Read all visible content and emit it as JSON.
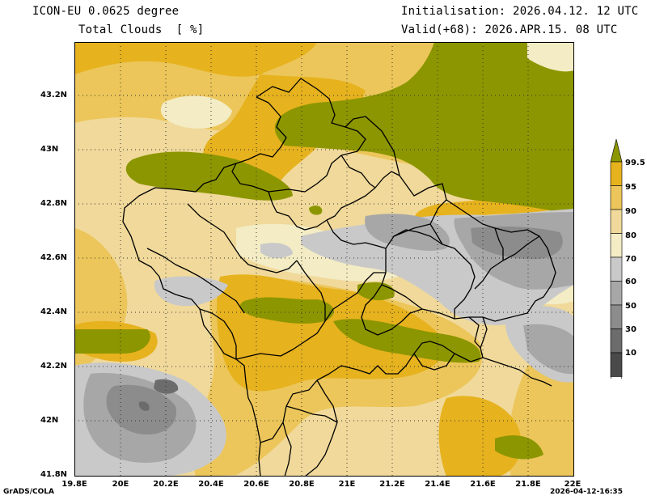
{
  "header": {
    "model": "ICON-EU 0.0625 degree",
    "field": "Total Clouds  [ %]",
    "init": "Initialisation: 2026.04.12. 12 UTC",
    "valid": "Valid(+68): 2026.APR.15. 08 UTC"
  },
  "axes": {
    "lat_labels": [
      "43.2N",
      "43N",
      "42.8N",
      "42.6N",
      "42.4N",
      "42.2N",
      "42N",
      "41.8N"
    ],
    "lon_labels": [
      "19.8E",
      "20E",
      "20.2E",
      "20.4E",
      "20.6E",
      "20.8E",
      "21E",
      "21.2E",
      "21.4E",
      "21.6E",
      "21.8E",
      "22E"
    ],
    "lat_range": [
      41.8,
      43.4
    ],
    "lon_range": [
      19.8,
      22.0
    ],
    "grid": "dotted"
  },
  "colorbar": {
    "labels": [
      "99.5",
      "95",
      "90",
      "80",
      "70",
      "60",
      "50",
      "30",
      "10"
    ],
    "colors": [
      "#8c9600",
      "#e6b21e",
      "#ecc65a",
      "#f0d99a",
      "#f3ecc4",
      "#c9c9c9",
      "#a7a7a7",
      "#8c8c8c",
      "#6c6c6c",
      "#4a4a4a",
      "#ffffff"
    ]
  },
  "footer": {
    "left": "GrADS/COLA",
    "right": "2026-04-12-16:35"
  },
  "colors": {
    "background": "#f0d99a",
    "border": "#000000"
  }
}
